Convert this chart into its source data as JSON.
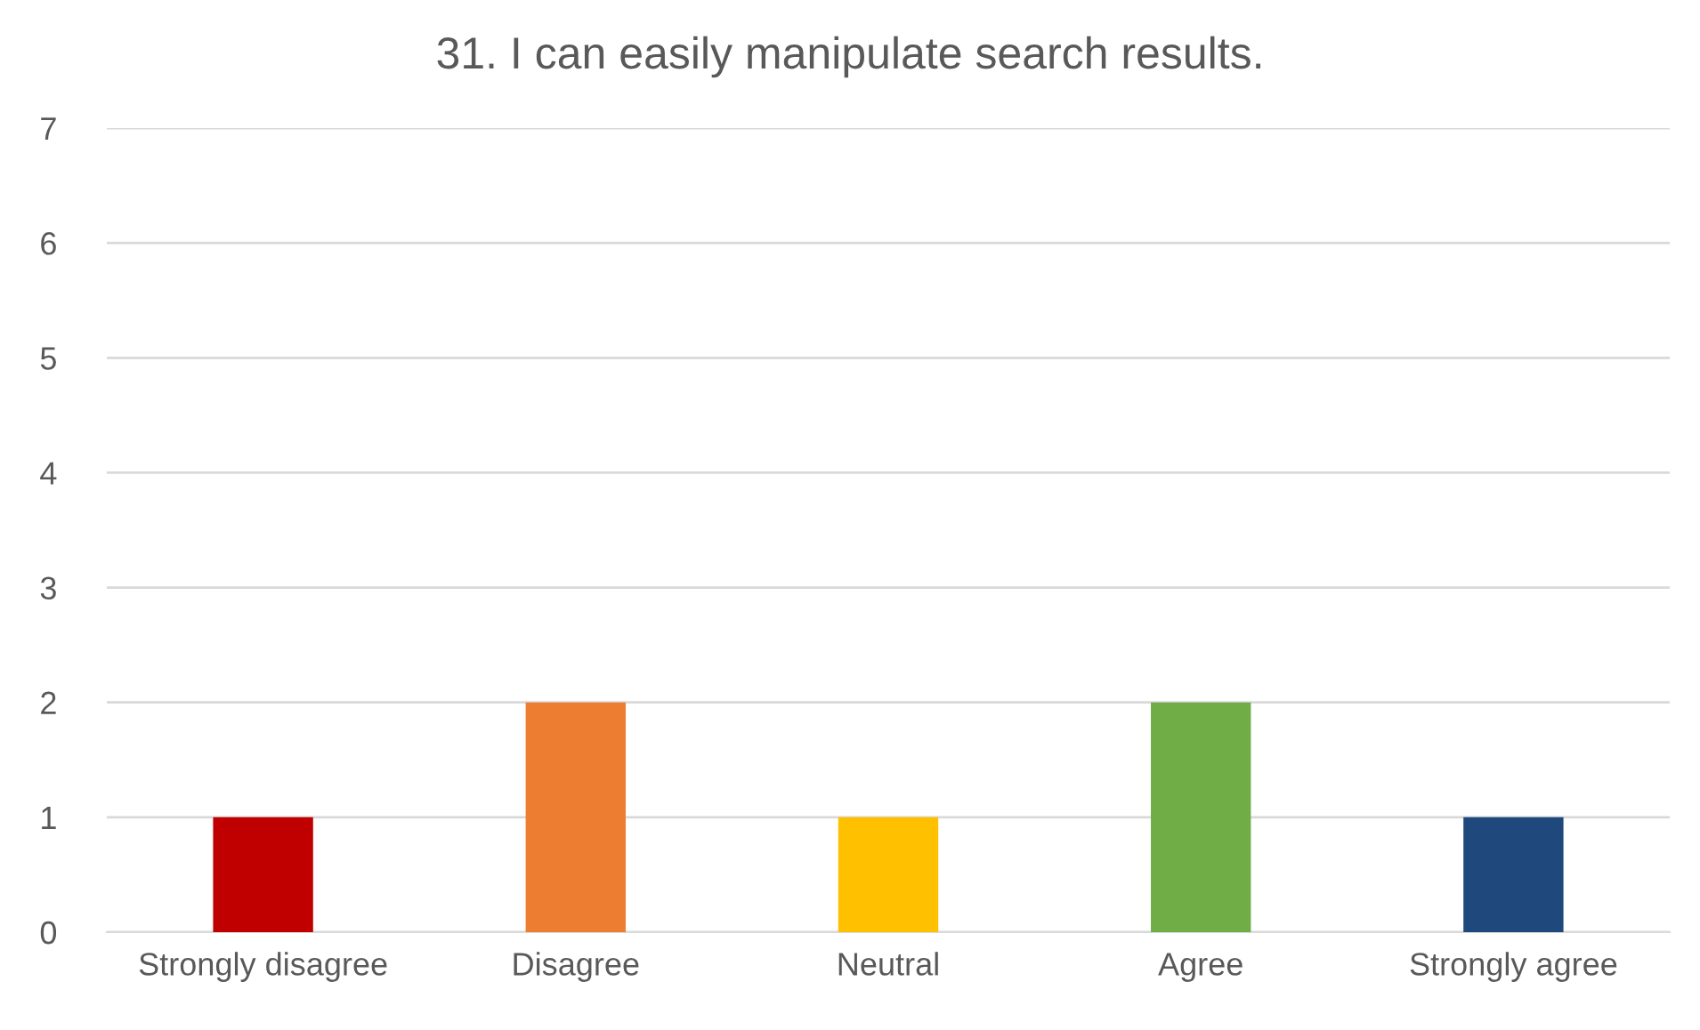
{
  "chart_data": {
    "type": "bar",
    "title": "31. I can easily manipulate search results.",
    "categories": [
      "Strongly disagree",
      "Disagree",
      "Neutral",
      "Agree",
      "Strongly agree"
    ],
    "values": [
      1,
      2,
      1,
      2,
      1
    ],
    "colors": [
      "#c00000",
      "#ed7d31",
      "#ffc000",
      "#70ad47",
      "#1f497d"
    ],
    "ylim": [
      0,
      7
    ],
    "yticks": [
      0,
      1,
      2,
      3,
      4,
      5,
      6,
      7
    ],
    "grid": "y",
    "legend": false
  }
}
